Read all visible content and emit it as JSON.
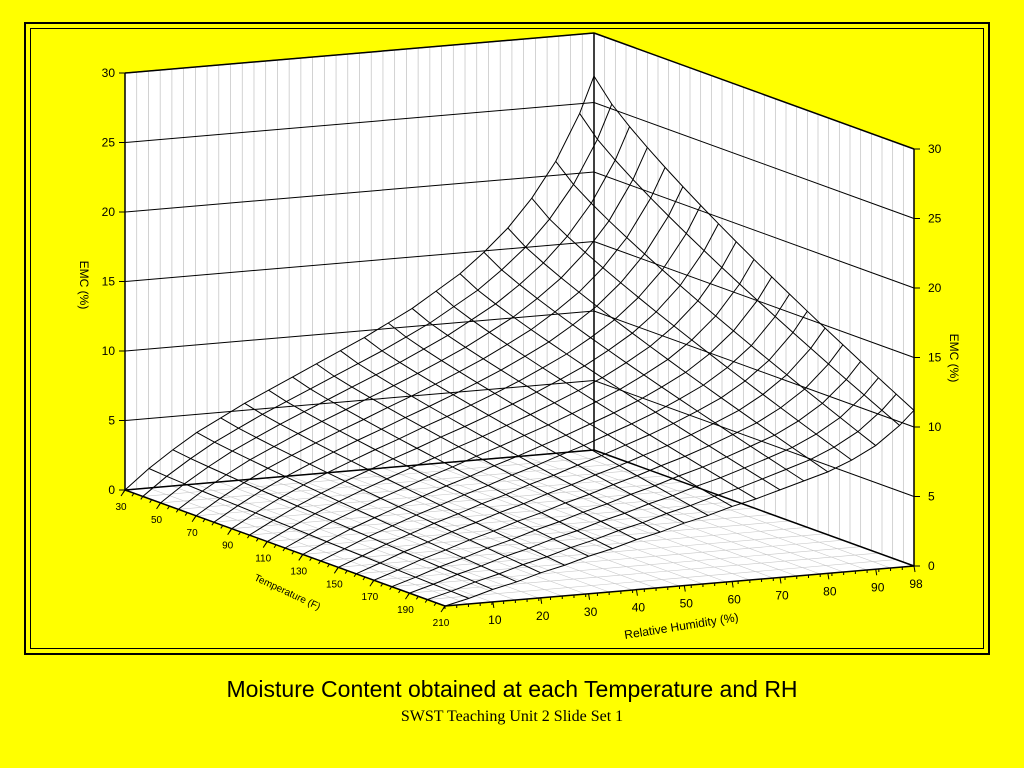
{
  "slide": {
    "caption": "Moisture Content obtained at each Temperature and RH",
    "footer": "SWST Teaching Unit 2 Slide Set 1",
    "background_color": "#ffff00"
  },
  "chart_data": {
    "type": "surface",
    "title": "",
    "x_axis": {
      "label": "Relative Humidity (%)",
      "ticks": [
        "10",
        "20",
        "30",
        "40",
        "50",
        "60",
        "70",
        "80",
        "90",
        "98"
      ],
      "range": [
        0,
        98
      ]
    },
    "y_axis": {
      "label": "Temperature (F)",
      "ticks": [
        "30",
        "50",
        "70",
        "90",
        "110",
        "130",
        "150",
        "170",
        "190",
        "210"
      ],
      "range": [
        30,
        210
      ]
    },
    "z_axis": {
      "label": "EMC (%)",
      "ticks": [
        "0",
        "5",
        "10",
        "15",
        "20",
        "25",
        "30"
      ],
      "range": [
        0,
        30
      ]
    },
    "z_axis_right": {
      "label": "EMC (%)",
      "ticks": [
        "0",
        "5",
        "10",
        "15",
        "20",
        "25",
        "30"
      ]
    },
    "grid": true,
    "surface": {
      "rh": [
        0,
        5,
        10,
        15,
        20,
        25,
        30,
        35,
        40,
        45,
        50,
        55,
        60,
        65,
        70,
        75,
        80,
        85,
        90,
        95,
        98
      ],
      "temperature": [
        30,
        40,
        50,
        60,
        70,
        80,
        90,
        100,
        110,
        120,
        130,
        140,
        150,
        160,
        170,
        180,
        190,
        200,
        210
      ],
      "emc_at_30F": [
        0.0,
        1.4,
        2.6,
        3.7,
        4.6,
        5.5,
        6.3,
        7.1,
        7.9,
        8.7,
        9.5,
        10.4,
        11.3,
        12.4,
        13.5,
        14.9,
        16.5,
        18.5,
        21.0,
        24.3,
        26.9
      ],
      "emc_at_210F": [
        0.0,
        0.4,
        0.9,
        1.3,
        1.8,
        2.2,
        2.7,
        3.1,
        3.6,
        4.0,
        4.5,
        4.9,
        5.4,
        5.8,
        6.3,
        6.8,
        7.3,
        8.0,
        8.9,
        10.2,
        11.2
      ]
    }
  }
}
